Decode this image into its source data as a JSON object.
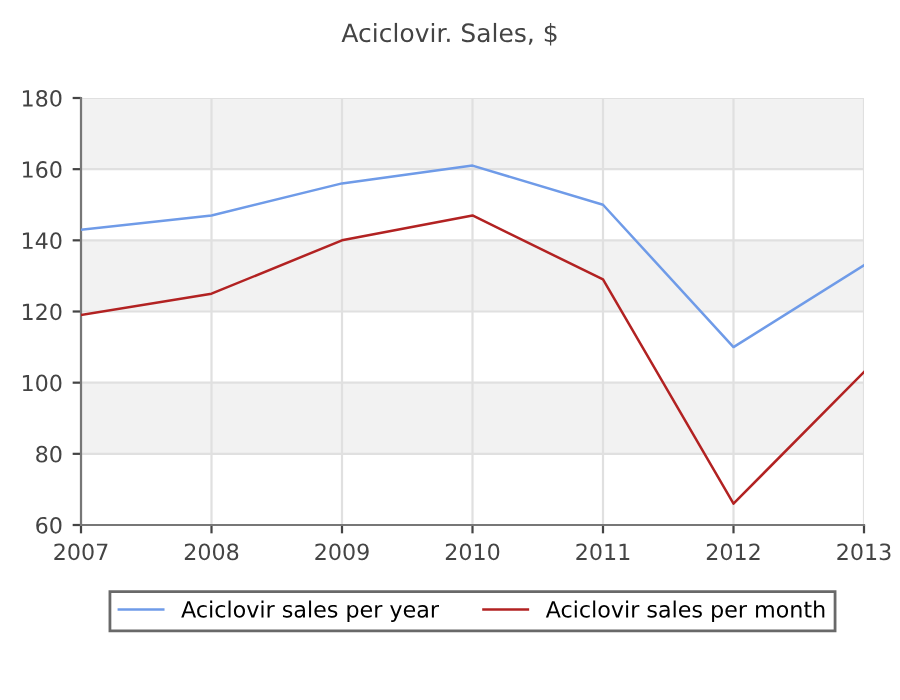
{
  "chart_data": {
    "type": "line",
    "title": "Aciclovir. Sales, $",
    "x": [
      2007,
      2008,
      2009,
      2010,
      2011,
      2012,
      2013
    ],
    "series": [
      {
        "name": "Aciclovir sales per year",
        "color": "#6f9be8",
        "values": [
          143,
          147,
          156,
          161,
          150,
          110,
          133
        ]
      },
      {
        "name": "Aciclovir sales per month",
        "color": "#b22222",
        "values": [
          119,
          125,
          140,
          147,
          129,
          66,
          103
        ]
      }
    ],
    "xlim": [
      2007,
      2013
    ],
    "xticks": [
      2007,
      2008,
      2009,
      2010,
      2011,
      2012,
      2013
    ],
    "ylim": [
      60,
      180
    ],
    "yticks": [
      60,
      80,
      100,
      120,
      140,
      160,
      180
    ],
    "bands": [
      {
        "axis": "y",
        "from": 80,
        "to": 100,
        "color": "#f2f2f2"
      },
      {
        "axis": "y",
        "from": 120,
        "to": 140,
        "color": "#f2f2f2"
      },
      {
        "axis": "y",
        "from": 160,
        "to": 180,
        "color": "#f2f2f2"
      }
    ],
    "grid": true,
    "legend": "bottom",
    "marker": "none",
    "line_style": "solid"
  }
}
